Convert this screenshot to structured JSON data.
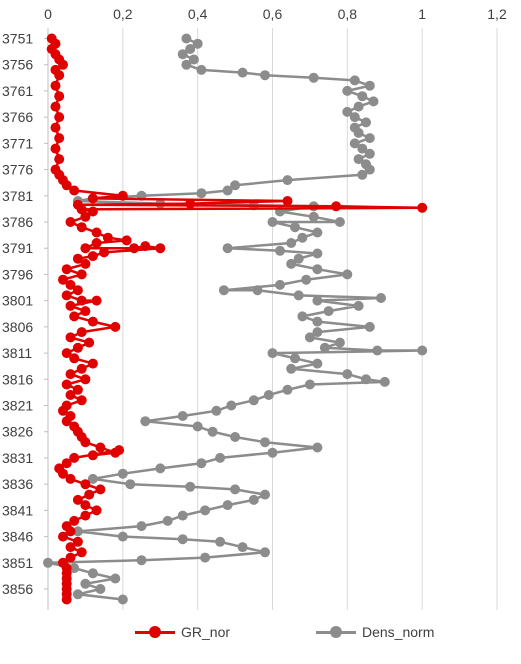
{
  "colors": {
    "series_gr": "#e00000",
    "series_dens": "#8c8c8c",
    "grid": "#d9d9d9"
  },
  "legend": {
    "gr_label": "GR_nor",
    "dens_label": "Dens_norm"
  },
  "chart_data": {
    "type": "scatter",
    "title": "",
    "x_axis": {
      "position": "top",
      "range": [
        0,
        1.2
      ],
      "ticks": [
        "0",
        "0,2",
        "0,4",
        "0,6",
        "0,8",
        "1",
        "1,2"
      ]
    },
    "y_axis": {
      "reversed": true,
      "range": [
        3749,
        3860
      ],
      "ticks": [
        "3751",
        "3756",
        "3761",
        "3766",
        "3771",
        "3776",
        "3781",
        "3786",
        "3791",
        "3796",
        "3801",
        "3806",
        "3811",
        "3816",
        "3821",
        "3826",
        "3831",
        "3836",
        "3841",
        "3846",
        "3851",
        "3856"
      ]
    },
    "grid": "vertical",
    "legend_position": "bottom",
    "series": [
      {
        "name": "GR_nor",
        "color": "#e00000",
        "points": [
          [
            0.01,
            3751
          ],
          [
            0.02,
            3752
          ],
          [
            0.01,
            3753
          ],
          [
            0.02,
            3754
          ],
          [
            0.03,
            3755
          ],
          [
            0.04,
            3756
          ],
          [
            0.02,
            3757
          ],
          [
            0.03,
            3758
          ],
          [
            0.02,
            3760
          ],
          [
            0.03,
            3762
          ],
          [
            0.02,
            3764
          ],
          [
            0.03,
            3766
          ],
          [
            0.02,
            3768
          ],
          [
            0.03,
            3770
          ],
          [
            0.02,
            3772
          ],
          [
            0.03,
            3774
          ],
          [
            0.02,
            3776
          ],
          [
            0.03,
            3777
          ],
          [
            0.04,
            3778
          ],
          [
            0.05,
            3779
          ],
          [
            0.07,
            3780
          ],
          [
            0.2,
            3781
          ],
          [
            0.12,
            3781.5
          ],
          [
            0.64,
            3782
          ],
          [
            0.38,
            3782.5
          ],
          [
            0.08,
            3782.7
          ],
          [
            0.77,
            3783
          ],
          [
            1.0,
            3783.3
          ],
          [
            0.09,
            3783.6
          ],
          [
            0.12,
            3784
          ],
          [
            0.1,
            3785
          ],
          [
            0.06,
            3786
          ],
          [
            0.09,
            3787
          ],
          [
            0.13,
            3788
          ],
          [
            0.16,
            3789
          ],
          [
            0.21,
            3789.5
          ],
          [
            0.13,
            3790
          ],
          [
            0.1,
            3791
          ],
          [
            0.23,
            3791
          ],
          [
            0.26,
            3790.6
          ],
          [
            0.3,
            3791
          ],
          [
            0.15,
            3791.8
          ],
          [
            0.12,
            3792.5
          ],
          [
            0.08,
            3793
          ],
          [
            0.1,
            3794
          ],
          [
            0.05,
            3795
          ],
          [
            0.09,
            3796
          ],
          [
            0.04,
            3797
          ],
          [
            0.06,
            3798
          ],
          [
            0.08,
            3799
          ],
          [
            0.05,
            3800
          ],
          [
            0.09,
            3801
          ],
          [
            0.13,
            3801
          ],
          [
            0.06,
            3802
          ],
          [
            0.1,
            3803
          ],
          [
            0.07,
            3804
          ],
          [
            0.12,
            3805
          ],
          [
            0.18,
            3806
          ],
          [
            0.09,
            3807
          ],
          [
            0.06,
            3808
          ],
          [
            0.11,
            3809
          ],
          [
            0.08,
            3810
          ],
          [
            0.05,
            3811
          ],
          [
            0.07,
            3812
          ],
          [
            0.12,
            3813
          ],
          [
            0.09,
            3814
          ],
          [
            0.06,
            3815
          ],
          [
            0.1,
            3816
          ],
          [
            0.05,
            3817
          ],
          [
            0.08,
            3818
          ],
          [
            0.06,
            3819
          ],
          [
            0.09,
            3820
          ],
          [
            0.05,
            3821
          ],
          [
            0.04,
            3822
          ],
          [
            0.06,
            3823
          ],
          [
            0.05,
            3824
          ],
          [
            0.07,
            3825
          ],
          [
            0.08,
            3826
          ],
          [
            0.09,
            3827
          ],
          [
            0.1,
            3828
          ],
          [
            0.14,
            3829
          ],
          [
            0.18,
            3830
          ],
          [
            0.12,
            3830.5
          ],
          [
            0.19,
            3829.5
          ],
          [
            0.07,
            3831
          ],
          [
            0.05,
            3832
          ],
          [
            0.03,
            3833
          ],
          [
            0.04,
            3834
          ],
          [
            0.06,
            3835
          ],
          [
            0.1,
            3836
          ],
          [
            0.14,
            3837
          ],
          [
            0.11,
            3838
          ],
          [
            0.08,
            3839
          ],
          [
            0.1,
            3840
          ],
          [
            0.13,
            3841
          ],
          [
            0.1,
            3842
          ],
          [
            0.07,
            3843
          ],
          [
            0.05,
            3844
          ],
          [
            0.06,
            3845
          ],
          [
            0.04,
            3846
          ],
          [
            0.08,
            3847
          ],
          [
            0.06,
            3848
          ],
          [
            0.09,
            3849
          ],
          [
            0.06,
            3850
          ],
          [
            0.04,
            3851
          ],
          [
            0.05,
            3852
          ],
          [
            0.05,
            3853
          ],
          [
            0.05,
            3854
          ],
          [
            0.05,
            3855
          ],
          [
            0.05,
            3856
          ],
          [
            0.05,
            3857
          ],
          [
            0.05,
            3858
          ]
        ]
      },
      {
        "name": "Dens_norm",
        "color": "#8c8c8c",
        "points": [
          [
            0.37,
            3751
          ],
          [
            0.4,
            3752
          ],
          [
            0.38,
            3753
          ],
          [
            0.36,
            3754
          ],
          [
            0.39,
            3755
          ],
          [
            0.37,
            3756
          ],
          [
            0.41,
            3757
          ],
          [
            0.52,
            3757.5
          ],
          [
            0.58,
            3758
          ],
          [
            0.71,
            3758.5
          ],
          [
            0.82,
            3759
          ],
          [
            0.86,
            3760
          ],
          [
            0.8,
            3761
          ],
          [
            0.84,
            3762
          ],
          [
            0.87,
            3763
          ],
          [
            0.83,
            3764
          ],
          [
            0.8,
            3765
          ],
          [
            0.82,
            3766
          ],
          [
            0.85,
            3767
          ],
          [
            0.82,
            3768
          ],
          [
            0.83,
            3769
          ],
          [
            0.86,
            3770
          ],
          [
            0.82,
            3771
          ],
          [
            0.84,
            3772
          ],
          [
            0.86,
            3773
          ],
          [
            0.83,
            3774
          ],
          [
            0.85,
            3775
          ],
          [
            0.86,
            3776
          ],
          [
            0.84,
            3777
          ],
          [
            0.64,
            3778
          ],
          [
            0.5,
            3779
          ],
          [
            0.48,
            3780
          ],
          [
            0.41,
            3780.5
          ],
          [
            0.25,
            3781
          ],
          [
            0.12,
            3781.5
          ],
          [
            0.08,
            3782
          ],
          [
            0.3,
            3782.5
          ],
          [
            0.55,
            3782.8
          ],
          [
            0.71,
            3783
          ],
          [
            0.62,
            3784
          ],
          [
            0.71,
            3785
          ],
          [
            0.78,
            3786
          ],
          [
            0.6,
            3786
          ],
          [
            0.66,
            3787
          ],
          [
            0.72,
            3788
          ],
          [
            0.68,
            3789
          ],
          [
            0.65,
            3790
          ],
          [
            0.48,
            3791
          ],
          [
            0.62,
            3791.5
          ],
          [
            0.72,
            3792
          ],
          [
            0.67,
            3793
          ],
          [
            0.65,
            3794
          ],
          [
            0.72,
            3795
          ],
          [
            0.8,
            3796
          ],
          [
            0.69,
            3797
          ],
          [
            0.62,
            3798
          ],
          [
            0.47,
            3799
          ],
          [
            0.56,
            3799
          ],
          [
            0.67,
            3800
          ],
          [
            0.89,
            3800.5
          ],
          [
            0.72,
            3801
          ],
          [
            0.83,
            3802
          ],
          [
            0.75,
            3803
          ],
          [
            0.68,
            3804
          ],
          [
            0.72,
            3805
          ],
          [
            0.86,
            3806
          ],
          [
            0.72,
            3807
          ],
          [
            0.7,
            3808
          ],
          [
            0.78,
            3809
          ],
          [
            0.74,
            3810
          ],
          [
            0.88,
            3810.5
          ],
          [
            1.0,
            3810.5
          ],
          [
            0.6,
            3811
          ],
          [
            0.66,
            3812
          ],
          [
            0.72,
            3813
          ],
          [
            0.65,
            3814
          ],
          [
            0.8,
            3815
          ],
          [
            0.85,
            3816
          ],
          [
            0.9,
            3816.5
          ],
          [
            0.7,
            3817
          ],
          [
            0.64,
            3818
          ],
          [
            0.59,
            3819
          ],
          [
            0.55,
            3820
          ],
          [
            0.49,
            3821
          ],
          [
            0.45,
            3822
          ],
          [
            0.36,
            3823
          ],
          [
            0.26,
            3824
          ],
          [
            0.4,
            3825
          ],
          [
            0.44,
            3826
          ],
          [
            0.5,
            3827
          ],
          [
            0.58,
            3828
          ],
          [
            0.72,
            3829
          ],
          [
            0.6,
            3830
          ],
          [
            0.46,
            3831
          ],
          [
            0.41,
            3832
          ],
          [
            0.3,
            3833
          ],
          [
            0.2,
            3834
          ],
          [
            0.12,
            3835
          ],
          [
            0.22,
            3836
          ],
          [
            0.38,
            3836.5
          ],
          [
            0.5,
            3837
          ],
          [
            0.58,
            3838
          ],
          [
            0.55,
            3839
          ],
          [
            0.48,
            3840
          ],
          [
            0.42,
            3841
          ],
          [
            0.36,
            3842
          ],
          [
            0.32,
            3843
          ],
          [
            0.25,
            3844
          ],
          [
            0.08,
            3845
          ],
          [
            0.2,
            3846
          ],
          [
            0.36,
            3846.5
          ],
          [
            0.46,
            3847
          ],
          [
            0.52,
            3848
          ],
          [
            0.58,
            3849
          ],
          [
            0.42,
            3850
          ],
          [
            0.25,
            3850.5
          ],
          [
            0.0,
            3851
          ],
          [
            0.07,
            3852
          ],
          [
            0.12,
            3853
          ],
          [
            0.18,
            3854
          ],
          [
            0.1,
            3855
          ],
          [
            0.14,
            3856
          ],
          [
            0.08,
            3857
          ],
          [
            0.2,
            3858
          ]
        ]
      }
    ]
  }
}
